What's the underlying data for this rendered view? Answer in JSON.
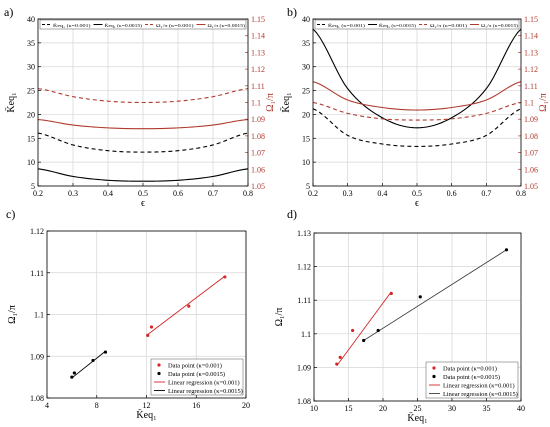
{
  "chart_data": [
    {
      "id": "a",
      "panel_label": "a)",
      "type": "line",
      "xlabel": "ϵ",
      "ylabel_left": "K̄eq₁",
      "ylabel_right": "Ω₁/π",
      "xlim": [
        0.2,
        0.8
      ],
      "ylim_left": [
        5,
        40
      ],
      "ylim_right": [
        1.05,
        1.15
      ],
      "xticks": [
        "0.2",
        "0.3",
        "0.4",
        "0.5",
        "0.6",
        "0.7",
        "0.8"
      ],
      "yticks_left": [
        "5",
        "10",
        "15",
        "20",
        "25",
        "30",
        "35",
        "40"
      ],
      "yticks_right": [
        "1.05",
        "1.06",
        "1.07",
        "1.08",
        "1.09",
        "1.1",
        "1.11",
        "1.12",
        "1.13",
        "1.14",
        "1.15"
      ],
      "grid": true,
      "legend_position": "top",
      "legend": [
        "K̄eq₁ (κ=0.001)",
        "K̄eq₁ (κ=0.0015)",
        "Ω₁/π (κ=0.001)",
        "Ω₁/π (κ=0.0015)"
      ],
      "x": [
        0.2,
        0.3,
        0.4,
        0.5,
        0.6,
        0.7,
        0.8
      ],
      "series": [
        {
          "name": "K̄eq₁ (κ=0.001)",
          "axis": "left",
          "style": "dashed",
          "color": "#000000",
          "values": [
            16.1,
            13.6,
            12.4,
            12.1,
            12.4,
            13.6,
            16.1
          ]
        },
        {
          "name": "K̄eq₁ (κ=0.0015)",
          "axis": "left",
          "style": "solid",
          "color": "#000000",
          "values": [
            8.6,
            7.0,
            6.2,
            6.0,
            6.2,
            7.0,
            8.6
          ]
        },
        {
          "name": "Ω₁/π (κ=0.001)",
          "axis": "right",
          "style": "dashed",
          "color": "#b03a2e",
          "values": [
            1.1083,
            1.1035,
            1.1008,
            1.1,
            1.1008,
            1.1035,
            1.1083
          ]
        },
        {
          "name": "Ω₁/π (κ=0.0015)",
          "axis": "right",
          "style": "solid",
          "color": "#b03a2e",
          "values": [
            1.0898,
            1.0865,
            1.0848,
            1.0843,
            1.0848,
            1.0865,
            1.0898
          ]
        }
      ]
    },
    {
      "id": "b",
      "panel_label": "b)",
      "type": "line",
      "xlabel": "ϵ",
      "ylabel_left": "K̄eq₁",
      "ylabel_right": "Ω₁/π",
      "xlim": [
        0.2,
        0.8
      ],
      "ylim_left": [
        5,
        40
      ],
      "ylim_right": [
        1.05,
        1.15
      ],
      "xticks": [
        "0.2",
        "0.3",
        "0.4",
        "0.5",
        "0.6",
        "0.7",
        "0.8"
      ],
      "yticks_left": [
        "5",
        "10",
        "15",
        "20",
        "25",
        "30",
        "35",
        "40"
      ],
      "yticks_right": [
        "1.05",
        "1.06",
        "1.07",
        "1.08",
        "1.09",
        "1.1",
        "1.11",
        "1.12",
        "1.13",
        "1.14",
        "1.15"
      ],
      "grid": true,
      "legend_position": "top",
      "legend": [
        "K̄eq₁ (κ=0.001)",
        "K̄eq₁ (κ=0.0015)",
        "Ω₁/π (κ=0.001)",
        "Ω₁/π (κ=0.0015)"
      ],
      "x": [
        0.2,
        0.3,
        0.4,
        0.5,
        0.6,
        0.7,
        0.8
      ],
      "series": [
        {
          "name": "K̄eq₁ (κ=0.001)",
          "axis": "left",
          "style": "dashed",
          "color": "#000000",
          "values": [
            21.2,
            15.6,
            13.8,
            13.3,
            13.8,
            15.6,
            21.2
          ]
        },
        {
          "name": "K̄eq₁ (κ=0.0015)",
          "axis": "left",
          "style": "solid",
          "color": "#000000",
          "values": [
            37.9,
            25.4,
            19.3,
            17.2,
            19.3,
            25.4,
            37.9
          ]
        },
        {
          "name": "Ω₁/π (κ=0.001)",
          "axis": "right",
          "style": "dashed",
          "color": "#b03a2e",
          "values": [
            1.1,
            1.0935,
            1.0902,
            1.0895,
            1.0902,
            1.0935,
            1.1
          ]
        },
        {
          "name": "Ω₁/π (κ=0.0015)",
          "axis": "right",
          "style": "solid",
          "color": "#b03a2e",
          "values": [
            1.1125,
            1.1015,
            1.097,
            1.0955,
            1.097,
            1.1015,
            1.1125
          ]
        }
      ]
    },
    {
      "id": "c",
      "panel_label": "c)",
      "type": "scatter",
      "xlabel": "K̄eq₁",
      "ylabel": "Ω₁/π",
      "xlim": [
        4,
        20
      ],
      "ylim": [
        1.08,
        1.12
      ],
      "xticks": [
        "4",
        "8",
        "12",
        "16",
        "20"
      ],
      "yticks": [
        "1.08",
        "1.09",
        "1.1",
        "1.11",
        "1.12"
      ],
      "grid": true,
      "legend_position": "bottom-right",
      "legend": [
        "Data point (κ=0.001)",
        "Data point (κ=0.0015)",
        "Linear regression (κ=0.001)",
        "Linear regression (κ=0.0015)"
      ],
      "series": [
        {
          "name": "Data point (κ=0.001)",
          "kind": "points",
          "color": "#d62728",
          "x": [
            12.1,
            12.4,
            15.4,
            18.3
          ],
          "y": [
            1.095,
            1.097,
            1.102,
            1.109
          ]
        },
        {
          "name": "Data point (κ=0.0015)",
          "kind": "points",
          "color": "#000000",
          "x": [
            6.0,
            6.2,
            7.7,
            8.7
          ],
          "y": [
            1.085,
            1.086,
            1.089,
            1.091
          ]
        },
        {
          "name": "Linear regression (κ=0.001)",
          "kind": "line",
          "color": "#d62728",
          "x": [
            12.1,
            18.3
          ],
          "y": [
            1.0952,
            1.1092
          ]
        },
        {
          "name": "Linear regression (κ=0.0015)",
          "kind": "line",
          "color": "#000000",
          "x": [
            6.0,
            8.7
          ],
          "y": [
            1.0848,
            1.0912
          ]
        }
      ]
    },
    {
      "id": "d",
      "panel_label": "d)",
      "type": "scatter",
      "xlabel": "K̄eq₁",
      "ylabel": "Ω₁/π",
      "xlim": [
        10,
        40
      ],
      "ylim": [
        1.08,
        1.13
      ],
      "xticks": [
        "10",
        "15",
        "20",
        "25",
        "30",
        "35",
        "40"
      ],
      "yticks": [
        "1.08",
        "1.09",
        "1.1",
        "1.11",
        "1.12",
        "1.13"
      ],
      "grid": true,
      "legend_position": "bottom-right",
      "legend": [
        "Data point (κ=0.001)",
        "Data point (κ=0.0015)",
        "Linear regression (κ=0.001)",
        "Linear regression (κ=0.0015)"
      ],
      "series": [
        {
          "name": "Data point (κ=0.001)",
          "kind": "points",
          "color": "#d62728",
          "x": [
            13.3,
            13.8,
            15.6,
            21.2
          ],
          "y": [
            1.091,
            1.093,
            1.101,
            1.112
          ]
        },
        {
          "name": "Data point (κ=0.0015)",
          "kind": "points",
          "color": "#000000",
          "x": [
            17.2,
            19.3,
            25.4,
            37.9
          ],
          "y": [
            1.098,
            1.101,
            1.111,
            1.125
          ]
        },
        {
          "name": "Linear regression (κ=0.001)",
          "kind": "line",
          "color": "#d62728",
          "x": [
            13.3,
            21.2
          ],
          "y": [
            1.0905,
            1.1125
          ]
        },
        {
          "name": "Linear regression (κ=0.0015)",
          "kind": "line",
          "color": "#404040",
          "x": [
            17.2,
            37.9
          ],
          "y": [
            1.098,
            1.125
          ]
        }
      ]
    }
  ]
}
